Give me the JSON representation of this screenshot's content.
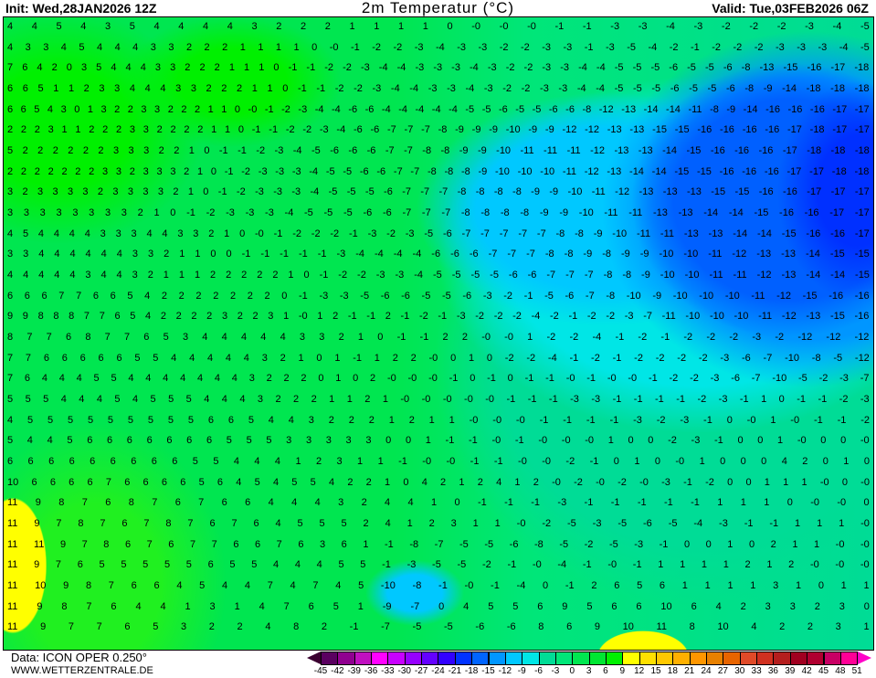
{
  "header": {
    "init": "Init: Wed,28JAN2026 12Z",
    "title": "2m Temperatur (°C)",
    "valid": "Valid: Tue,03FEB2026 06Z"
  },
  "footer": {
    "data_source": "Data: ICON OPER 0.250°",
    "website": "WWW.WETTERZENTRALE.DE"
  },
  "legend": {
    "labels": [
      "-45",
      "-42",
      "-39",
      "-36",
      "-33",
      "-30",
      "-27",
      "-24",
      "-21",
      "-18",
      "-15",
      "-12",
      "-9",
      "-6",
      "-3",
      "0",
      "3",
      "6",
      "9",
      "12",
      "15",
      "18",
      "21",
      "24",
      "27",
      "30",
      "33",
      "36",
      "39",
      "42",
      "45",
      "48",
      "51"
    ],
    "below_color": "#3a0030",
    "above_color": "#ff00c8",
    "colors": [
      "#5a0060",
      "#900090",
      "#c010c0",
      "#ff00ff",
      "#c800ff",
      "#9600ff",
      "#6400ff",
      "#3200ff",
      "#0032ff",
      "#0064ff",
      "#0096ff",
      "#00c8ff",
      "#00e6e6",
      "#00dc96",
      "#00e678",
      "#00e650",
      "#00e632",
      "#00f000",
      "#ffff00",
      "#ffe000",
      "#ffc800",
      "#ffb000",
      "#ff9600",
      "#e88000",
      "#e86400",
      "#e04a28",
      "#d03020",
      "#b41e1e",
      "#a00020",
      "#b00030",
      "#c80064",
      "#ff0096"
    ]
  },
  "map": {
    "variable": "2m temperature",
    "unit": "°C",
    "value_rows": [
      "4 4 5 4 3 5 4 4 4 4 3 2 2 2 1 1 1 1 0 -0 -0 -0 -1 -1 -3 -3 -4 -3 -2 -2 -2 -3 -4 -5",
      "4 3 3 4 5 4 4 4 3 3 2 2 2 1 1 1 1 0 -0 -1 -2 -2 -3 -4 -3 -3 -2 -2 -3 -3 -1 -3 -5 -4 -2 -1 -2 -2 -2 -3 -3 -3 -4 -5",
      "7 6 4 2 0 3 5 4 4 4 3 3 2 2 2 1 1 1 0 -1 -1 -2 -2 -3 -4 -4 -3 -3 -3 -4 -3 -2 -2 -3 -3 -4 -4 -5 -5 -5 -6 -5 -5 -6 -8 -13 -15 -16 -17 -18",
      "6 6 5 1 1 2 3 3 4 4 4 3 3 2 2 2 1 1 0 -1 -1 -2 -2 -3 -4 -4 -3 -3 -4 -3 -2 -2 -3 -3 -4 -4 -5 -5 -5 -6 -5 -5 -6 -8 -9 -14 -18 -18 -18",
      "6 6 5 4 3 0 1 3 2 2 3 3 2 2 2 1 1 0 -0 -1 -2 -3 -4 -4 -6 -6 -4 -4 -4 -4 -4 -5 -5 -6 -5 -5 -6 -6 -8 -12 -13 -14 -14 -11 -8 -9 -14 -16 -16 -16 -17 -17",
      "2 2 2 3 1 1 2 2 2 3 3 2 2 2 2 1 1 0 -1 -1 -2 -2 -3 -4 -6 -6 -7 -7 -7 -8 -9 -9 -9 -10 -9 -9 -12 -12 -13 -13 -15 -15 -16 -16 -16 -16 -17 -18 -17 -17",
      "5 2 2 2 2 2 2 3 3 3 2 2 1 0 -1 -1 -2 -3 -4 -5 -6 -6 -6 -7 -7 -8 -8 -9 -9 -10 -11 -11 -11 -12 -13 -13 -14 -15 -16 -16 -16 -17 -18 -18 -18",
      "2 2 2 2 2 2 2 3 3 2 3 3 3 2 1 0 -1 -2 -3 -3 -3 -4 -5 -5 -6 -6 -7 -7 -8 -8 -8 -9 -10 -10 -10 -11 -12 -13 -14 -14 -15 -15 -16 -16 -16 -17 -17 -18 -18",
      "3 2 3 3 3 3 2 3 3 3 3 2 1 0 -1 -2 -3 -3 -3 -4 -5 -5 -5 -6 -7 -7 -7 -8 -8 -8 -8 -9 -9 -10 -11 -12 -13 -13 -13 -15 -15 -16 -16 -17 -17 -17",
      "3 3 3 3 3 3 3 3 2 1 0 -1 -2 -3 -3 -3 -4 -5 -5 -5 -6 -6 -7 -7 -7 -8 -8 -8 -8 -9 -9 -10 -11 -11 -13 -13 -14 -14 -15 -16 -16 -17 -17",
      "4 5 4 4 4 4 3 3 3 4 4 3 3 2 1 0 -0 -1 -2 -2 -2 -1 -3 -2 -3 -5 -6 -7 -7 -7 -7 -7 -8 -8 -9 -10 -11 -11 -13 -13 -14 -14 -15 -16 -16 -17",
      "3 3 4 4 4 4 4 4 3 3 2 1 1 0 0 -1 -1 -1 -1 -1 -3 -4 -4 -4 -4 -6 -6 -6 -7 -7 -7 -8 -8 -9 -8 -9 -9 -10 -10 -11 -12 -13 -13 -14 -15 -15",
      "4 4 4 4 4 3 4 4 3 2 1 1 1 2 2 2 2 2 1 0 -1 -2 -2 -3 -3 -4 -5 -5 -5 -5 -6 -6 -7 -7 -7 -8 -8 -9 -10 -10 -11 -11 -12 -13 -14 -14 -15",
      "6 6 6 7 7 6 6 5 4 2 2 2 2 2 2 2 0 -1 -3 -3 -5 -6 -6 -5 -5 -6 -3 -2 -1 -5 -6 -7 -8 -10 -9 -10 -10 -10 -11 -12 -15 -16 -16",
      "9 9 8 8 8 7 7 6 5 4 2 2 2 2 3 2 2 3 1 -0 1 2 -1 -1 2 -1 -2 -1 -3 -2 -2 -2 -4 -2 -1 -2 -2 -3 -7 -11 -10 -10 -10 -11 -12 -13 -15 -16",
      "8 7 7 6 8 7 7 6 5 3 4 4 4 4 4 3 3 2 1 0 -1 -1 2 2 -0 -0 1 -2 -2 -4 -1 -2 -1 -2 -2 -2 -3 -2 -12 -12 -12",
      "7 7 6 6 6 6 6 5 5 4 4 4 4 4 3 2 1 0 1 -1 1 2 2 -0 0 1 0 -2 -2 -4 -1 -2 -1 -2 -2 -2 -2 -3 -6 -7 -10 -8 -5 -12",
      "7 6 4 4 4 5 5 4 4 4 4 4 4 4 3 2 2 2 0 1 0 2 -0 -0 -0 -1 0 -1 0 -1 -1 -0 -1 -0 -0 -1 -2 -2 -3 -6 -7 -10 -5 -2 -3 -7",
      "5 5 5 4 4 4 5 4 5 5 5 4 4 4 3 2 2 2 1 1 2 1 -0 -0 -0 -0 -0 -1 -1 -1 -3 -3 -1 -1 -1 -1 -2 -3 -1 1 0 -1 -1 -2 -3",
      "4 5 5 5 5 5 5 5 5 5 6 6 5 4 4 3 2 2 2 1 2 1 1 -0 -0 -0 -1 -1 -1 -1 -3 -2 -3 -1 0 -0 1 -0 -1 -1 -2",
      "5 4 4 5 6 6 6 6 6 6 6 5 5 5 3 3 3 3 3 0 0 1 -1 -1 -0 -1 -0 -0 -0 1 0 0 -2 -3 -1 0 0 1 -0 0 0 -0",
      "6 6 6 6 6 6 6 6 6 5 5 4 4 4 1 2 3 1 1 -1 -0 -0 -1 -1 -0 -0 -2 -1 0 1 0 -0 1 0 0 0 4 2 0 1 0",
      "10 6 6 6 6 7 6 6 6 6 5 6 4 5 4 5 5 4 2 2 1 0 4 2 1 2 4 1 2 -0 -2 -0 -2 -0 -3 -1 -2 0 0 1 1 1 -0 0 -0",
      "11 9 8 7 6 8 7 6 7 6 6 4 4 4 3 2 4 4 1 0 -1 -1 -1 -3 -1 -1 -1 -1 -1 1 1 1 0 -0 -0 0",
      "11 9 7 8 7 6 7 8 7 6 7 6 4 5 5 5 2 4 1 2 3 1 1 -0 -2 -5 -3 -5 -6 -5 -4 -3 -1 -1 1 1 1 -0",
      "11 11 9 7 8 6 7 6 7 7 6 6 7 6 3 6 1 -1 -8 -7 -5 -5 -6 -8 -5 -2 -5 -3 -1 0 0 1 0 2 1 1 -0 -0",
      "11 9 7 6 5 5 5 5 5 6 5 5 4 4 4 5 5 -1 -3 -5 -5 -2 -1 -0 -4 -1 -0 -1 1 1 1 1 2 1 2 -0 -0 -0",
      "11 10 9 8 7 6 6 4 5 4 4 7 4 7 4 5 -10 -8 -1 -0 -1 -4 0 -1 2 6 5 6 1 1 1 1 3 1 0 1 1",
      "11 9 8 7 6 4 4 1 3 1 4 7 6 5 1 -9 -7 0 4 5 5 6 9 5 6 6 10 6 4 2 3 3 2 3 0",
      "11 9 7 7 6 5 3 2 2 4 8 2 -1 -7 -5 -5 -6 -6 8 6 9 10 11 8 10 4 2 2 3 1"
    ]
  }
}
